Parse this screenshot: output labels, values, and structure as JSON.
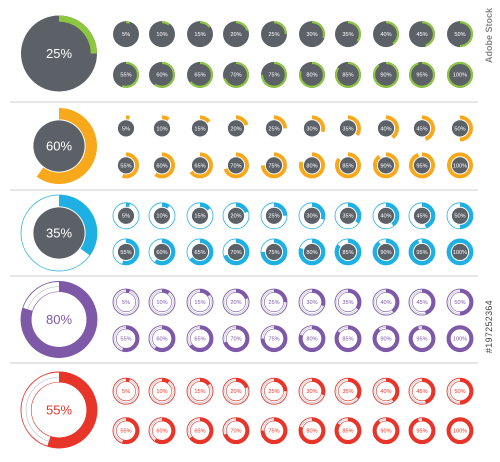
{
  "brand": "Adobe Stock",
  "stock_id": "#197252364",
  "colors": {
    "dark": "#5c6168",
    "light_track": "#ffffff",
    "line_track": "#c7ccd3"
  },
  "rows": [
    {
      "id": "green",
      "style": "filled",
      "accent": "#8dc63f",
      "big_label": "25%",
      "big_value": 25,
      "labels": [
        "5%",
        "10%",
        "15%",
        "20%",
        "25%",
        "30%",
        "35%",
        "40%",
        "45%",
        "50%",
        "55%",
        "60%",
        "65%",
        "70%",
        "75%",
        "80%",
        "85%",
        "90%",
        "95%",
        "100%"
      ],
      "values": [
        5,
        10,
        15,
        20,
        25,
        30,
        35,
        40,
        45,
        50,
        55,
        60,
        65,
        70,
        75,
        80,
        85,
        90,
        95,
        100
      ]
    },
    {
      "id": "orange",
      "style": "filled-gap",
      "accent": "#f7a81b",
      "big_label": "60%",
      "big_value": 60,
      "labels": [
        "5%",
        "10%",
        "15%",
        "20%",
        "25%",
        "30%",
        "35%",
        "40%",
        "45%",
        "50%",
        "55%",
        "60%",
        "65%",
        "70%",
        "75%",
        "80%",
        "85%",
        "90%",
        "95%",
        "100%"
      ],
      "values": [
        5,
        10,
        15,
        20,
        25,
        30,
        35,
        40,
        45,
        50,
        55,
        60,
        65,
        70,
        75,
        80,
        85,
        90,
        95,
        100
      ]
    },
    {
      "id": "blue",
      "style": "ring-track",
      "accent": "#1fb0e3",
      "big_label": "35%",
      "big_value": 35,
      "labels": [
        "5%",
        "10%",
        "15%",
        "20%",
        "25%",
        "30%",
        "35%",
        "40%",
        "45%",
        "50%",
        "55%",
        "60%",
        "65%",
        "70%",
        "75%",
        "80%",
        "85%",
        "90%",
        "95%",
        "100%"
      ],
      "values": [
        5,
        10,
        15,
        20,
        25,
        30,
        35,
        40,
        45,
        50,
        55,
        60,
        65,
        70,
        75,
        80,
        85,
        90,
        95,
        100
      ]
    },
    {
      "id": "purple",
      "style": "outline",
      "accent": "#7d59a8",
      "big_label": "80%",
      "big_value": 80,
      "labels": [
        "5%",
        "10%",
        "15%",
        "20%",
        "25%",
        "30%",
        "35%",
        "40%",
        "45%",
        "50%",
        "55%",
        "60%",
        "65%",
        "70%",
        "75%",
        "80%",
        "85%",
        "90%",
        "95%",
        "100%"
      ],
      "values": [
        5,
        10,
        15,
        20,
        25,
        30,
        35,
        40,
        45,
        50,
        55,
        60,
        65,
        70,
        75,
        80,
        85,
        90,
        95,
        100
      ]
    },
    {
      "id": "red",
      "style": "outline",
      "accent": "#e8352a",
      "big_label": "55%",
      "big_value": 55,
      "labels": [
        "5%",
        "10%",
        "15%",
        "20%",
        "25%",
        "30%",
        "35%",
        "40%",
        "45%",
        "50%",
        "55%",
        "60%",
        "65%",
        "70%",
        "75%",
        "80%",
        "85%",
        "90%",
        "95%",
        "100%"
      ],
      "values": [
        5,
        10,
        15,
        20,
        25,
        30,
        35,
        40,
        45,
        50,
        55,
        60,
        65,
        70,
        75,
        80,
        85,
        90,
        95,
        100
      ]
    }
  ]
}
